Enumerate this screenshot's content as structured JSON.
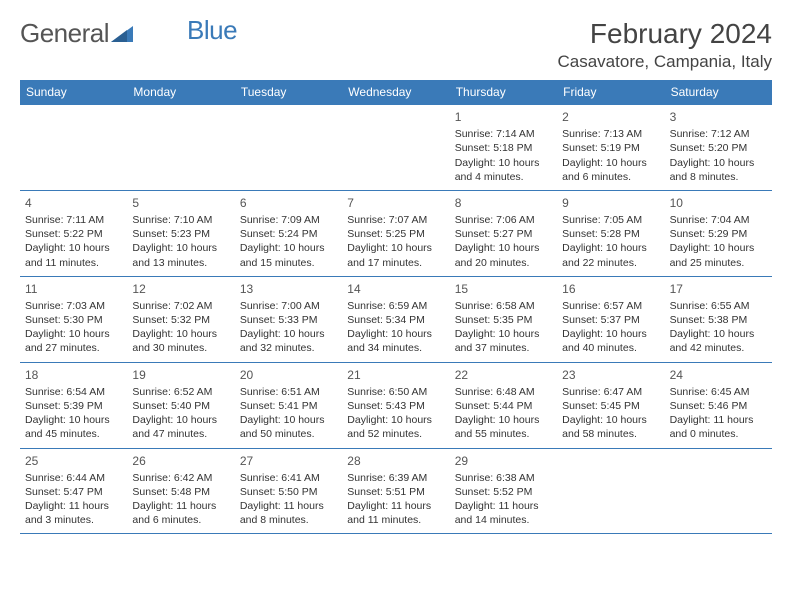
{
  "logo": {
    "text_general": "General",
    "text_blue": "Blue"
  },
  "header": {
    "month_title": "February 2024",
    "location": "Casavatore, Campania, Italy"
  },
  "calendar": {
    "header_bg": "#3a7ab8",
    "weekdays": [
      "Sunday",
      "Monday",
      "Tuesday",
      "Wednesday",
      "Thursday",
      "Friday",
      "Saturday"
    ],
    "weeks": [
      [
        {
          "day": "",
          "lines": []
        },
        {
          "day": "",
          "lines": []
        },
        {
          "day": "",
          "lines": []
        },
        {
          "day": "",
          "lines": []
        },
        {
          "day": "1",
          "lines": [
            "Sunrise: 7:14 AM",
            "Sunset: 5:18 PM",
            "Daylight: 10 hours",
            "and 4 minutes."
          ]
        },
        {
          "day": "2",
          "lines": [
            "Sunrise: 7:13 AM",
            "Sunset: 5:19 PM",
            "Daylight: 10 hours",
            "and 6 minutes."
          ]
        },
        {
          "day": "3",
          "lines": [
            "Sunrise: 7:12 AM",
            "Sunset: 5:20 PM",
            "Daylight: 10 hours",
            "and 8 minutes."
          ]
        }
      ],
      [
        {
          "day": "4",
          "lines": [
            "Sunrise: 7:11 AM",
            "Sunset: 5:22 PM",
            "Daylight: 10 hours",
            "and 11 minutes."
          ]
        },
        {
          "day": "5",
          "lines": [
            "Sunrise: 7:10 AM",
            "Sunset: 5:23 PM",
            "Daylight: 10 hours",
            "and 13 minutes."
          ]
        },
        {
          "day": "6",
          "lines": [
            "Sunrise: 7:09 AM",
            "Sunset: 5:24 PM",
            "Daylight: 10 hours",
            "and 15 minutes."
          ]
        },
        {
          "day": "7",
          "lines": [
            "Sunrise: 7:07 AM",
            "Sunset: 5:25 PM",
            "Daylight: 10 hours",
            "and 17 minutes."
          ]
        },
        {
          "day": "8",
          "lines": [
            "Sunrise: 7:06 AM",
            "Sunset: 5:27 PM",
            "Daylight: 10 hours",
            "and 20 minutes."
          ]
        },
        {
          "day": "9",
          "lines": [
            "Sunrise: 7:05 AM",
            "Sunset: 5:28 PM",
            "Daylight: 10 hours",
            "and 22 minutes."
          ]
        },
        {
          "day": "10",
          "lines": [
            "Sunrise: 7:04 AM",
            "Sunset: 5:29 PM",
            "Daylight: 10 hours",
            "and 25 minutes."
          ]
        }
      ],
      [
        {
          "day": "11",
          "lines": [
            "Sunrise: 7:03 AM",
            "Sunset: 5:30 PM",
            "Daylight: 10 hours",
            "and 27 minutes."
          ]
        },
        {
          "day": "12",
          "lines": [
            "Sunrise: 7:02 AM",
            "Sunset: 5:32 PM",
            "Daylight: 10 hours",
            "and 30 minutes."
          ]
        },
        {
          "day": "13",
          "lines": [
            "Sunrise: 7:00 AM",
            "Sunset: 5:33 PM",
            "Daylight: 10 hours",
            "and 32 minutes."
          ]
        },
        {
          "day": "14",
          "lines": [
            "Sunrise: 6:59 AM",
            "Sunset: 5:34 PM",
            "Daylight: 10 hours",
            "and 34 minutes."
          ]
        },
        {
          "day": "15",
          "lines": [
            "Sunrise: 6:58 AM",
            "Sunset: 5:35 PM",
            "Daylight: 10 hours",
            "and 37 minutes."
          ]
        },
        {
          "day": "16",
          "lines": [
            "Sunrise: 6:57 AM",
            "Sunset: 5:37 PM",
            "Daylight: 10 hours",
            "and 40 minutes."
          ]
        },
        {
          "day": "17",
          "lines": [
            "Sunrise: 6:55 AM",
            "Sunset: 5:38 PM",
            "Daylight: 10 hours",
            "and 42 minutes."
          ]
        }
      ],
      [
        {
          "day": "18",
          "lines": [
            "Sunrise: 6:54 AM",
            "Sunset: 5:39 PM",
            "Daylight: 10 hours",
            "and 45 minutes."
          ]
        },
        {
          "day": "19",
          "lines": [
            "Sunrise: 6:52 AM",
            "Sunset: 5:40 PM",
            "Daylight: 10 hours",
            "and 47 minutes."
          ]
        },
        {
          "day": "20",
          "lines": [
            "Sunrise: 6:51 AM",
            "Sunset: 5:41 PM",
            "Daylight: 10 hours",
            "and 50 minutes."
          ]
        },
        {
          "day": "21",
          "lines": [
            "Sunrise: 6:50 AM",
            "Sunset: 5:43 PM",
            "Daylight: 10 hours",
            "and 52 minutes."
          ]
        },
        {
          "day": "22",
          "lines": [
            "Sunrise: 6:48 AM",
            "Sunset: 5:44 PM",
            "Daylight: 10 hours",
            "and 55 minutes."
          ]
        },
        {
          "day": "23",
          "lines": [
            "Sunrise: 6:47 AM",
            "Sunset: 5:45 PM",
            "Daylight: 10 hours",
            "and 58 minutes."
          ]
        },
        {
          "day": "24",
          "lines": [
            "Sunrise: 6:45 AM",
            "Sunset: 5:46 PM",
            "Daylight: 11 hours",
            "and 0 minutes."
          ]
        }
      ],
      [
        {
          "day": "25",
          "lines": [
            "Sunrise: 6:44 AM",
            "Sunset: 5:47 PM",
            "Daylight: 11 hours",
            "and 3 minutes."
          ]
        },
        {
          "day": "26",
          "lines": [
            "Sunrise: 6:42 AM",
            "Sunset: 5:48 PM",
            "Daylight: 11 hours",
            "and 6 minutes."
          ]
        },
        {
          "day": "27",
          "lines": [
            "Sunrise: 6:41 AM",
            "Sunset: 5:50 PM",
            "Daylight: 11 hours",
            "and 8 minutes."
          ]
        },
        {
          "day": "28",
          "lines": [
            "Sunrise: 6:39 AM",
            "Sunset: 5:51 PM",
            "Daylight: 11 hours",
            "and 11 minutes."
          ]
        },
        {
          "day": "29",
          "lines": [
            "Sunrise: 6:38 AM",
            "Sunset: 5:52 PM",
            "Daylight: 11 hours",
            "and 14 minutes."
          ]
        },
        {
          "day": "",
          "lines": []
        },
        {
          "day": "",
          "lines": []
        }
      ]
    ]
  }
}
